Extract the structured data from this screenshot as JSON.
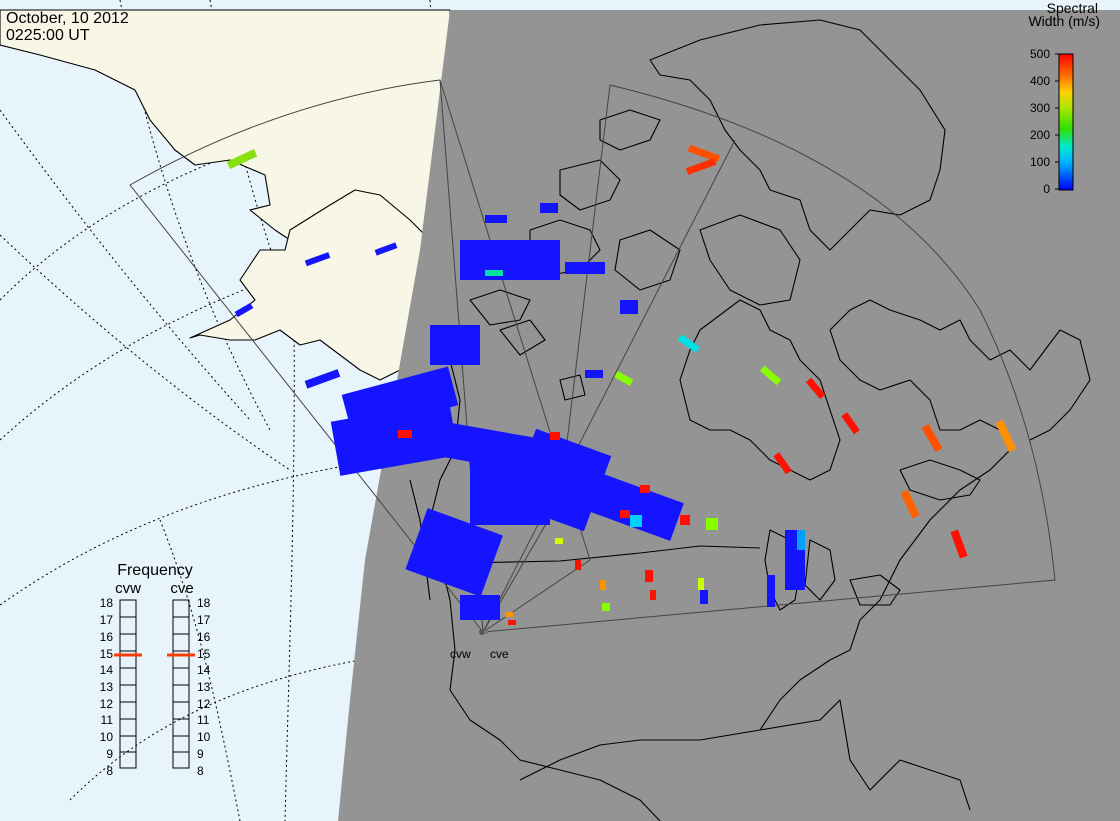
{
  "header": {
    "date": "October, 10 2012",
    "time": "0225:00 UT"
  },
  "colorbar": {
    "title_line1": "Spectral",
    "title_line2": "Width (m/s)",
    "ticks": [
      "500",
      "400",
      "300",
      "200",
      "100",
      "0"
    ],
    "range": [
      0,
      500
    ]
  },
  "frequency_panel": {
    "title": "Frequency",
    "radars": [
      {
        "name": "cvw",
        "selected": "15"
      },
      {
        "name": "cve",
        "selected": "15"
      }
    ],
    "ticks": [
      "18",
      "17",
      "16",
      "15",
      "14",
      "13",
      "12",
      "11",
      "10",
      "9",
      "8"
    ]
  },
  "stations": [
    {
      "name": "cvw"
    },
    {
      "name": "cve"
    }
  ],
  "colors": {
    "ocean": "#e8f4fb",
    "land": "#f8f6e6",
    "night": "#949494",
    "accent_selected": "#ff3c00"
  }
}
